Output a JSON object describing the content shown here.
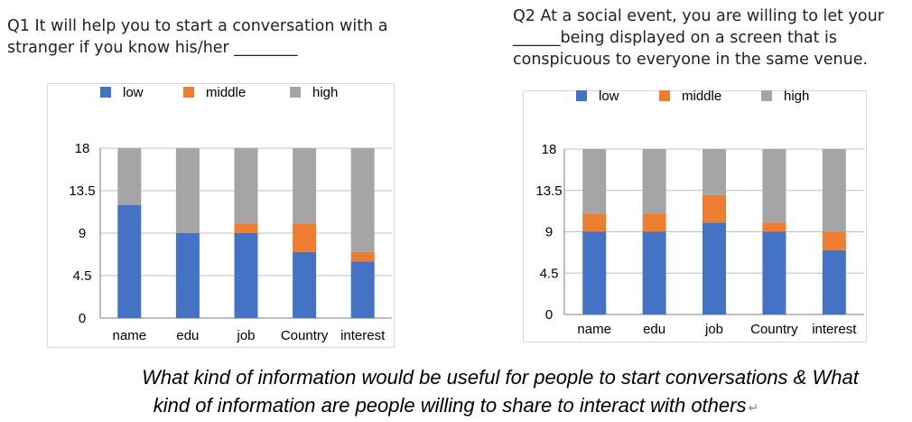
{
  "questions": {
    "q1": {
      "line1": "Q1 It will help you to start a conversation with a",
      "line2": "stranger if you know his/her ________"
    },
    "q2": {
      "line1": "Q2 At a social event, you are willing to let your",
      "line2": "______being displayed on a screen that is",
      "line3": "conspicuous to everyone in the same venue."
    }
  },
  "colors": {
    "low": "#4472c4",
    "middle": "#ed7d31",
    "high": "#a5a5a5",
    "grid": "#bfbfbf"
  },
  "chart_data": [
    {
      "type": "bar",
      "stacked": true,
      "categories": [
        "name",
        "edu",
        "job",
        "Country",
        "interest"
      ],
      "series": [
        {
          "name": "low",
          "values": [
            12,
            9,
            9,
            7,
            6
          ]
        },
        {
          "name": "middle",
          "values": [
            0,
            0,
            1,
            3,
            1
          ]
        },
        {
          "name": "high",
          "values": [
            6,
            9,
            8,
            8,
            11
          ]
        }
      ],
      "yticks": [
        "0",
        "4.5",
        "9",
        "13.5",
        "18"
      ],
      "ylim": [
        0,
        18
      ],
      "grid": true,
      "legend": "top"
    },
    {
      "type": "bar",
      "stacked": true,
      "categories": [
        "name",
        "edu",
        "job",
        "Country",
        "interest"
      ],
      "series": [
        {
          "name": "low",
          "values": [
            9,
            9,
            10,
            9,
            7
          ]
        },
        {
          "name": "middle",
          "values": [
            2,
            2,
            3,
            1,
            2
          ]
        },
        {
          "name": "high",
          "values": [
            7,
            7,
            5,
            8,
            9
          ]
        }
      ],
      "yticks": [
        "0",
        "4.5",
        "9",
        "13.5",
        "18"
      ],
      "ylim": [
        0,
        18
      ],
      "grid": true,
      "legend": "top"
    }
  ],
  "caption": {
    "line1": "What kind of information would be useful for people to start conversations & What",
    "line2": "kind of information are people willing to share to interact with others",
    "mark": "↵"
  }
}
